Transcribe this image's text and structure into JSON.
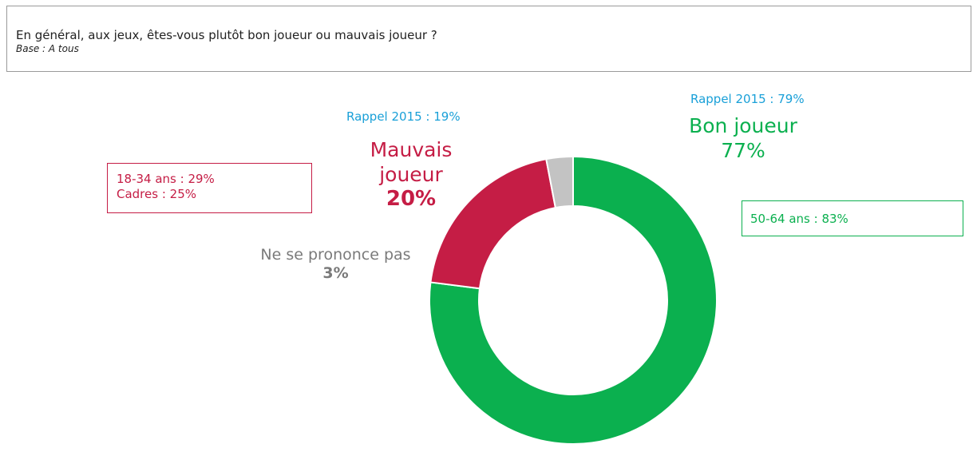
{
  "question": {
    "text": "En général, aux jeux, êtes-vous plutôt bon joueur ou mauvais joueur ?",
    "base": "Base : A tous"
  },
  "chart_data": {
    "type": "pie",
    "donut": true,
    "categories": [
      "Bon joueur",
      "Mauvais joueur",
      "Ne se prononce pas"
    ],
    "values": [
      77,
      20,
      3
    ],
    "unit": "%",
    "colors": [
      "#0bb04f",
      "#c51d45",
      "#c3c3c3"
    ],
    "recall_2015": [
      {
        "category": "Bon joueur",
        "text": "Rappel 2015 : 79%",
        "value": 79
      },
      {
        "category": "Mauvais joueur",
        "text": "Rappel 2015 : 19%",
        "value": 19
      }
    ]
  },
  "labels": {
    "bon_name": "Bon joueur",
    "bon_pct": "77%",
    "mauvais_name_1": "Mauvais",
    "mauvais_name_2": "joueur",
    "mauvais_pct": "20%",
    "nsp_name": "Ne se prononce pas",
    "nsp_pct": "3%",
    "recall_bon": "Rappel 2015 : 79%",
    "recall_mauvais": "Rappel 2015 : 19%"
  },
  "callouts": {
    "mauvais_line1": "18-34 ans : 29%",
    "mauvais_line2": "Cadres : 25%",
    "bon_line1": "50-64 ans : 83%"
  }
}
